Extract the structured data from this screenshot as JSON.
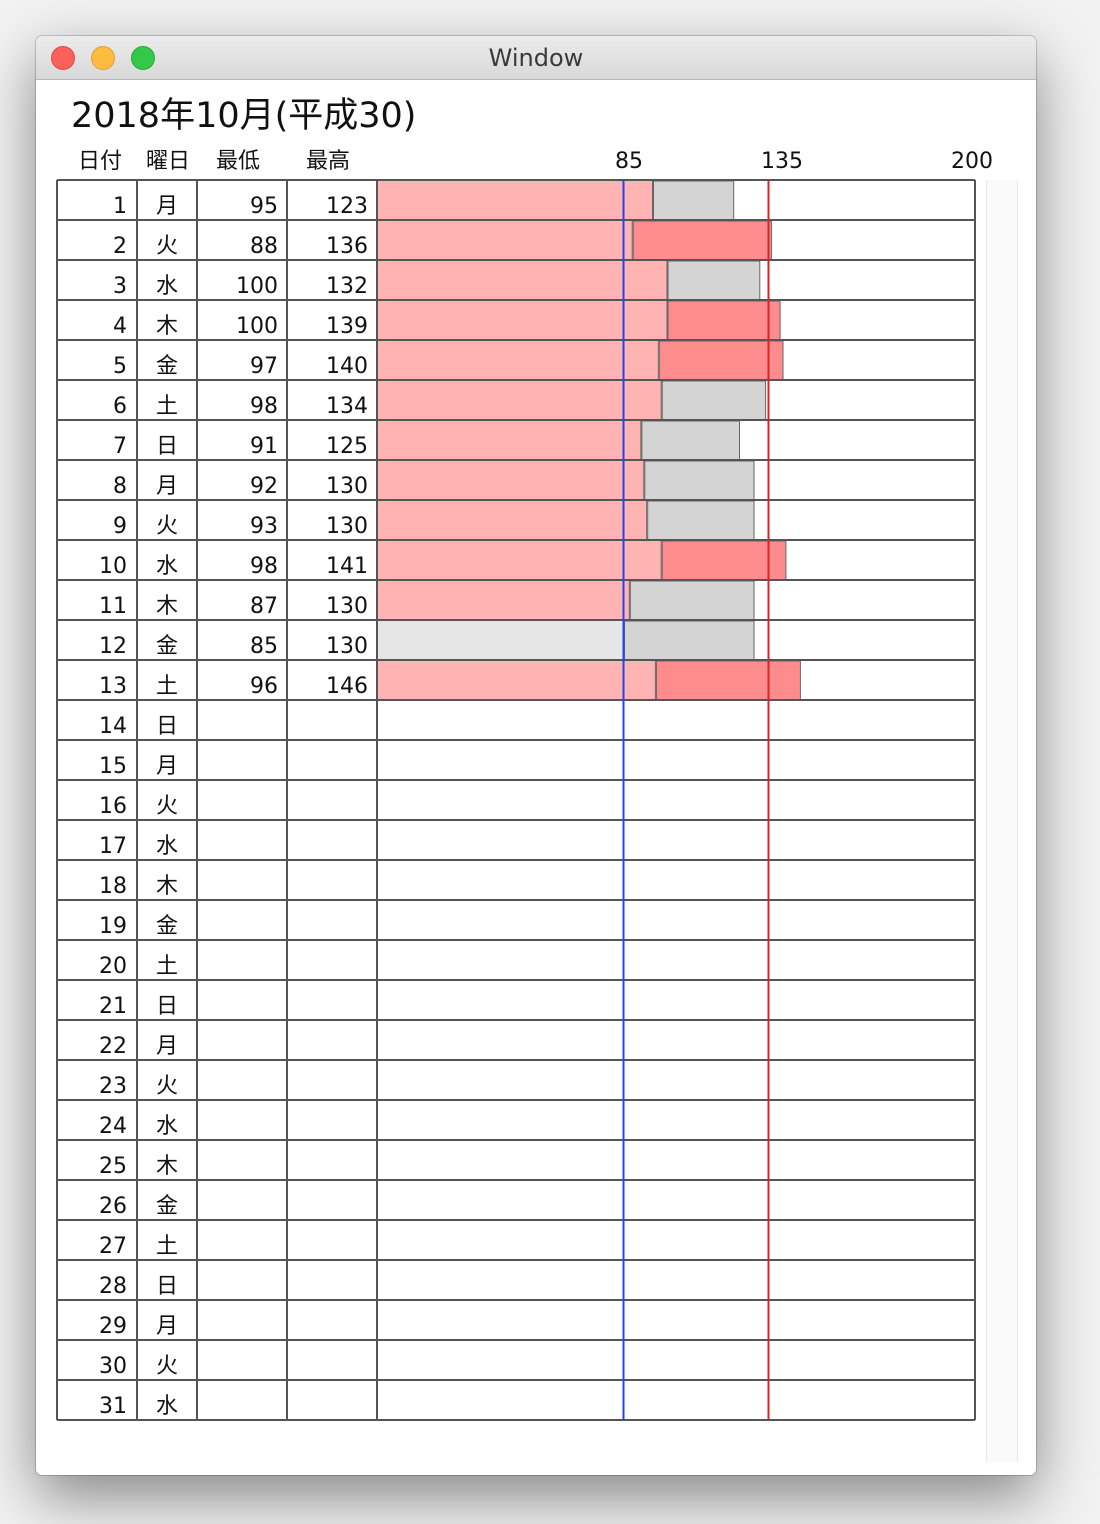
{
  "window": {
    "title": "Window"
  },
  "page": {
    "title": "2018年10月(平成30)"
  },
  "headers": {
    "day": "日付",
    "weekday": "曜日",
    "low": "最低",
    "high": "最高"
  },
  "colors": {
    "low_bar": "#ffb3b3",
    "low_bar_below_threshold": "#e6e6e6",
    "high_bar_alert": "#ff8c8c",
    "high_bar_normal": "#d4d4d4",
    "low_threshold_line": "#2244ee",
    "high_threshold_line": "#dd2222"
  },
  "chart_data": {
    "type": "bar",
    "x_ticks": [
      85,
      135,
      200
    ],
    "xlim": [
      0,
      200
    ],
    "low_threshold": 85,
    "high_threshold": 135,
    "rows": [
      {
        "day": 1,
        "weekday": "月",
        "low": 95,
        "high": 123
      },
      {
        "day": 2,
        "weekday": "火",
        "low": 88,
        "high": 136
      },
      {
        "day": 3,
        "weekday": "水",
        "low": 100,
        "high": 132
      },
      {
        "day": 4,
        "weekday": "木",
        "low": 100,
        "high": 139
      },
      {
        "day": 5,
        "weekday": "金",
        "low": 97,
        "high": 140
      },
      {
        "day": 6,
        "weekday": "土",
        "low": 98,
        "high": 134
      },
      {
        "day": 7,
        "weekday": "日",
        "low": 91,
        "high": 125
      },
      {
        "day": 8,
        "weekday": "月",
        "low": 92,
        "high": 130
      },
      {
        "day": 9,
        "weekday": "火",
        "low": 93,
        "high": 130
      },
      {
        "day": 10,
        "weekday": "水",
        "low": 98,
        "high": 141
      },
      {
        "day": 11,
        "weekday": "木",
        "low": 87,
        "high": 130
      },
      {
        "day": 12,
        "weekday": "金",
        "low": 85,
        "high": 130
      },
      {
        "day": 13,
        "weekday": "土",
        "low": 96,
        "high": 146
      },
      {
        "day": 14,
        "weekday": "日",
        "low": null,
        "high": null
      },
      {
        "day": 15,
        "weekday": "月",
        "low": null,
        "high": null
      },
      {
        "day": 16,
        "weekday": "火",
        "low": null,
        "high": null
      },
      {
        "day": 17,
        "weekday": "水",
        "low": null,
        "high": null
      },
      {
        "day": 18,
        "weekday": "木",
        "low": null,
        "high": null
      },
      {
        "day": 19,
        "weekday": "金",
        "low": null,
        "high": null
      },
      {
        "day": 20,
        "weekday": "土",
        "low": null,
        "high": null
      },
      {
        "day": 21,
        "weekday": "日",
        "low": null,
        "high": null
      },
      {
        "day": 22,
        "weekday": "月",
        "low": null,
        "high": null
      },
      {
        "day": 23,
        "weekday": "火",
        "low": null,
        "high": null
      },
      {
        "day": 24,
        "weekday": "水",
        "low": null,
        "high": null
      },
      {
        "day": 25,
        "weekday": "木",
        "low": null,
        "high": null
      },
      {
        "day": 26,
        "weekday": "金",
        "low": null,
        "high": null
      },
      {
        "day": 27,
        "weekday": "土",
        "low": null,
        "high": null
      },
      {
        "day": 28,
        "weekday": "日",
        "low": null,
        "high": null
      },
      {
        "day": 29,
        "weekday": "月",
        "low": null,
        "high": null
      },
      {
        "day": 30,
        "weekday": "火",
        "low": null,
        "high": null
      },
      {
        "day": 31,
        "weekday": "水",
        "low": null,
        "high": null
      }
    ]
  }
}
